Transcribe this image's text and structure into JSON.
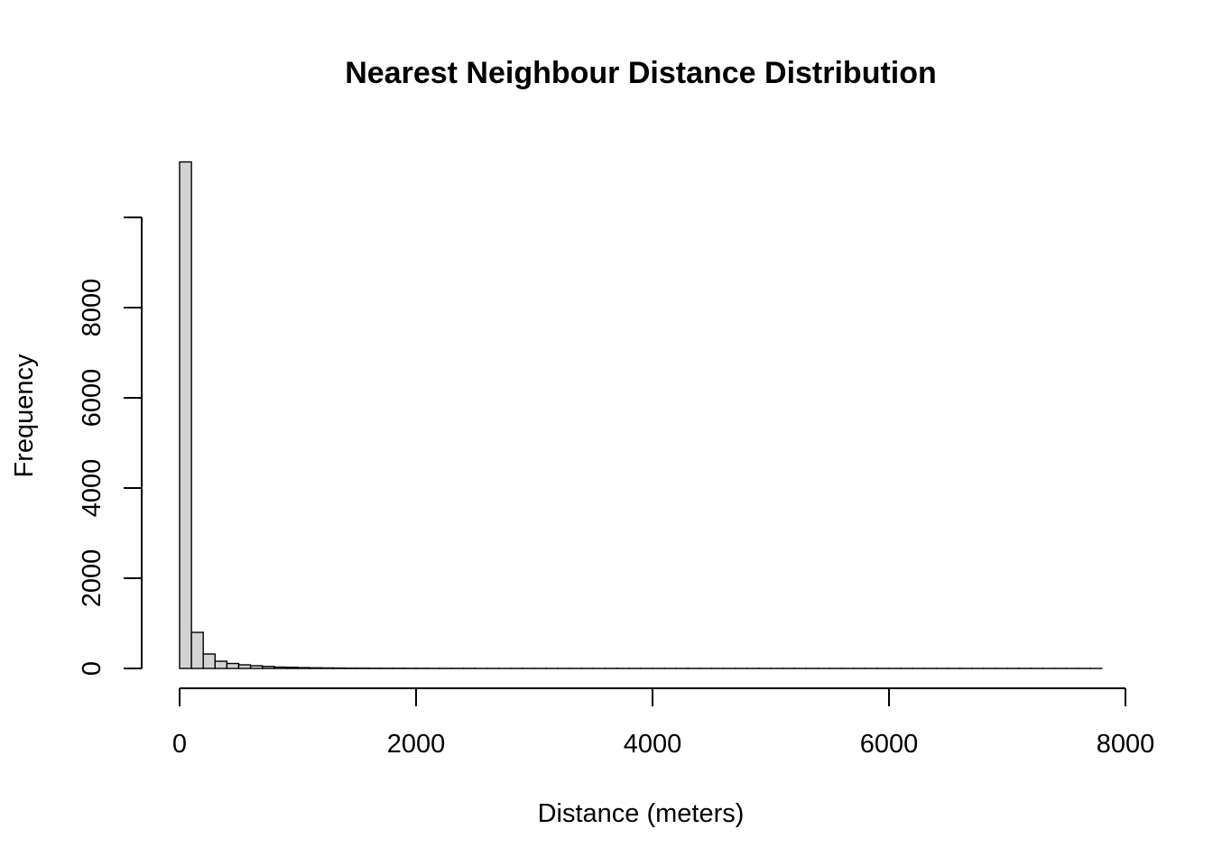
{
  "chart_data": {
    "type": "bar",
    "title": "Nearest Neighbour Distance Distribution",
    "xlabel": "Distance (meters)",
    "ylabel": "Frequency",
    "bin_width": 100,
    "bins_start": 0,
    "bar_color": "#d3d3d3",
    "border_color": "#000000",
    "values": [
      11230,
      800,
      320,
      160,
      110,
      80,
      60,
      45,
      30,
      25,
      18,
      14,
      11,
      9,
      7,
      6,
      5,
      4,
      4,
      3,
      3,
      2,
      2,
      2,
      2,
      1,
      1,
      1,
      1,
      1,
      1,
      1,
      1,
      1,
      1,
      1,
      1,
      1,
      1,
      1,
      1,
      1,
      1,
      1,
      1,
      1,
      1,
      1,
      1,
      1,
      1,
      1,
      1,
      1,
      1,
      1,
      1,
      1,
      1,
      1,
      1,
      1,
      1,
      1,
      1,
      1,
      1,
      1,
      1,
      1,
      1,
      1,
      1,
      1,
      1,
      1,
      1,
      1
    ],
    "xlim": [
      0,
      8000
    ],
    "ylim": [
      0,
      10000
    ],
    "x_ticks": [
      0,
      2000,
      4000,
      6000,
      8000
    ],
    "x_tick_labels": [
      "0",
      "2000",
      "4000",
      "6000",
      "8000"
    ],
    "y_ticks": [
      0,
      2000,
      4000,
      6000,
      8000,
      10000
    ],
    "y_tick_labels": [
      "0",
      "2000",
      "4000",
      "6000",
      "8000",
      ""
    ],
    "grid": false,
    "legend": "none"
  }
}
